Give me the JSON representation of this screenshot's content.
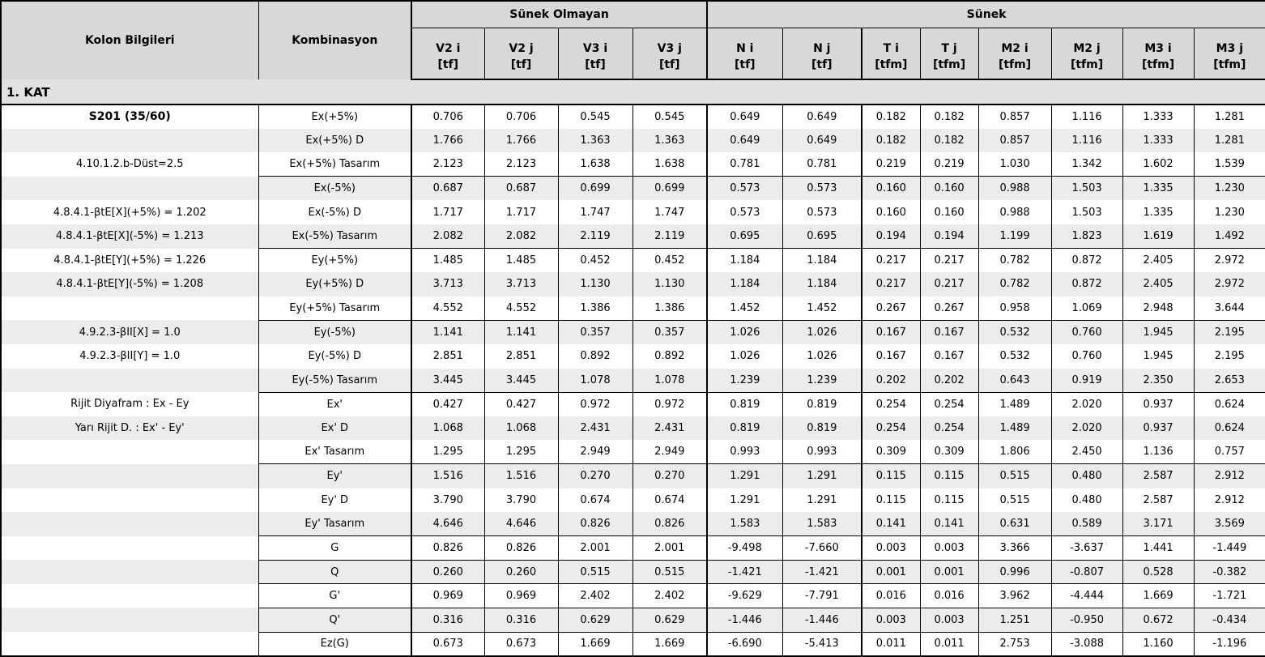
{
  "header": {
    "kolon_bilgileri": "Kolon Bilgileri",
    "kombinasyon": "Kombinasyon",
    "group_nonductile": "Sünek Olmayan",
    "group_ductile": "Sünek",
    "columns": [
      {
        "name": "V2 i",
        "unit": "[tf]"
      },
      {
        "name": "V2 j",
        "unit": "[tf]"
      },
      {
        "name": "V3 i",
        "unit": "[tf]"
      },
      {
        "name": "V3 j",
        "unit": "[tf]"
      },
      {
        "name": "N i",
        "unit": "[tf]"
      },
      {
        "name": "N j",
        "unit": "[tf]"
      },
      {
        "name": "T i",
        "unit": "[tfm]"
      },
      {
        "name": "T j",
        "unit": "[tfm]"
      },
      {
        "name": "M2 i",
        "unit": "[tfm]"
      },
      {
        "name": "M2 j",
        "unit": "[tfm]"
      },
      {
        "name": "M3 i",
        "unit": "[tfm]"
      },
      {
        "name": "M3 j",
        "unit": "[tfm]"
      }
    ]
  },
  "section": "1. KAT",
  "colors": {
    "header_bg": "#d8d8d8",
    "section_bg": "#e2e2e2",
    "row_alt_bg": "#ececec",
    "border": "#000000"
  },
  "rows": [
    {
      "info": "S201 (35/60)",
      "bold": true,
      "combo": "Ex(+5%)",
      "group_start": false,
      "values": [
        "0.706",
        "0.706",
        "0.545",
        "0.545",
        "0.649",
        "0.649",
        "0.182",
        "0.182",
        "0.857",
        "1.116",
        "1.333",
        "1.281"
      ]
    },
    {
      "info": "",
      "bold": false,
      "combo": "Ex(+5%) D",
      "group_start": false,
      "values": [
        "1.766",
        "1.766",
        "1.363",
        "1.363",
        "0.649",
        "0.649",
        "0.182",
        "0.182",
        "0.857",
        "1.116",
        "1.333",
        "1.281"
      ]
    },
    {
      "info": "4.10.1.2.b-Düst=2.5",
      "bold": false,
      "combo": "Ex(+5%) Tasarım",
      "group_start": false,
      "values": [
        "2.123",
        "2.123",
        "1.638",
        "1.638",
        "0.781",
        "0.781",
        "0.219",
        "0.219",
        "1.030",
        "1.342",
        "1.602",
        "1.539"
      ]
    },
    {
      "info": "",
      "bold": false,
      "combo": "Ex(-5%)",
      "group_start": true,
      "values": [
        "0.687",
        "0.687",
        "0.699",
        "0.699",
        "0.573",
        "0.573",
        "0.160",
        "0.160",
        "0.988",
        "1.503",
        "1.335",
        "1.230"
      ]
    },
    {
      "info": "4.8.4.1-βtE[X](+5%) = 1.202",
      "bold": false,
      "combo": "Ex(-5%) D",
      "group_start": false,
      "values": [
        "1.717",
        "1.717",
        "1.747",
        "1.747",
        "0.573",
        "0.573",
        "0.160",
        "0.160",
        "0.988",
        "1.503",
        "1.335",
        "1.230"
      ]
    },
    {
      "info": "4.8.4.1-βtE[X](-5%) = 1.213",
      "bold": false,
      "combo": "Ex(-5%) Tasarım",
      "group_start": false,
      "values": [
        "2.082",
        "2.082",
        "2.119",
        "2.119",
        "0.695",
        "0.695",
        "0.194",
        "0.194",
        "1.199",
        "1.823",
        "1.619",
        "1.492"
      ]
    },
    {
      "info": "4.8.4.1-βtE[Y](+5%) = 1.226",
      "bold": false,
      "combo": "Ey(+5%)",
      "group_start": true,
      "values": [
        "1.485",
        "1.485",
        "0.452",
        "0.452",
        "1.184",
        "1.184",
        "0.217",
        "0.217",
        "0.782",
        "0.872",
        "2.405",
        "2.972"
      ]
    },
    {
      "info": "4.8.4.1-βtE[Y](-5%) = 1.208",
      "bold": false,
      "combo": "Ey(+5%) D",
      "group_start": false,
      "values": [
        "3.713",
        "3.713",
        "1.130",
        "1.130",
        "1.184",
        "1.184",
        "0.217",
        "0.217",
        "0.782",
        "0.872",
        "2.405",
        "2.972"
      ]
    },
    {
      "info": "",
      "bold": false,
      "combo": "Ey(+5%) Tasarım",
      "group_start": false,
      "values": [
        "4.552",
        "4.552",
        "1.386",
        "1.386",
        "1.452",
        "1.452",
        "0.267",
        "0.267",
        "0.958",
        "1.069",
        "2.948",
        "3.644"
      ]
    },
    {
      "info": "4.9.2.3-βII[X] = 1.0",
      "bold": false,
      "combo": "Ey(-5%)",
      "group_start": true,
      "values": [
        "1.141",
        "1.141",
        "0.357",
        "0.357",
        "1.026",
        "1.026",
        "0.167",
        "0.167",
        "0.532",
        "0.760",
        "1.945",
        "2.195"
      ]
    },
    {
      "info": "4.9.2.3-βII[Y] = 1.0",
      "bold": false,
      "combo": "Ey(-5%) D",
      "group_start": false,
      "values": [
        "2.851",
        "2.851",
        "0.892",
        "0.892",
        "1.026",
        "1.026",
        "0.167",
        "0.167",
        "0.532",
        "0.760",
        "1.945",
        "2.195"
      ]
    },
    {
      "info": "",
      "bold": false,
      "combo": "Ey(-5%) Tasarım",
      "group_start": false,
      "values": [
        "3.445",
        "3.445",
        "1.078",
        "1.078",
        "1.239",
        "1.239",
        "0.202",
        "0.202",
        "0.643",
        "0.919",
        "2.350",
        "2.653"
      ]
    },
    {
      "info": "Rijit Diyafram : Ex - Ey",
      "bold": false,
      "combo": "Ex'",
      "group_start": true,
      "values": [
        "0.427",
        "0.427",
        "0.972",
        "0.972",
        "0.819",
        "0.819",
        "0.254",
        "0.254",
        "1.489",
        "2.020",
        "0.937",
        "0.624"
      ]
    },
    {
      "info": "Yarı Rijit D. : Ex' - Ey'",
      "bold": false,
      "combo": "Ex' D",
      "group_start": false,
      "values": [
        "1.068",
        "1.068",
        "2.431",
        "2.431",
        "0.819",
        "0.819",
        "0.254",
        "0.254",
        "1.489",
        "2.020",
        "0.937",
        "0.624"
      ]
    },
    {
      "info": "",
      "bold": false,
      "combo": "Ex' Tasarım",
      "group_start": false,
      "values": [
        "1.295",
        "1.295",
        "2.949",
        "2.949",
        "0.993",
        "0.993",
        "0.309",
        "0.309",
        "1.806",
        "2.450",
        "1.136",
        "0.757"
      ]
    },
    {
      "info": "",
      "bold": false,
      "combo": "Ey'",
      "group_start": true,
      "values": [
        "1.516",
        "1.516",
        "0.270",
        "0.270",
        "1.291",
        "1.291",
        "0.115",
        "0.115",
        "0.515",
        "0.480",
        "2.587",
        "2.912"
      ]
    },
    {
      "info": "",
      "bold": false,
      "combo": "Ey' D",
      "group_start": false,
      "values": [
        "3.790",
        "3.790",
        "0.674",
        "0.674",
        "1.291",
        "1.291",
        "0.115",
        "0.115",
        "0.515",
        "0.480",
        "2.587",
        "2.912"
      ]
    },
    {
      "info": "",
      "bold": false,
      "combo": "Ey' Tasarım",
      "group_start": false,
      "values": [
        "4.646",
        "4.646",
        "0.826",
        "0.826",
        "1.583",
        "1.583",
        "0.141",
        "0.141",
        "0.631",
        "0.589",
        "3.171",
        "3.569"
      ]
    },
    {
      "info": "",
      "bold": false,
      "combo": "G",
      "group_start": true,
      "values": [
        "0.826",
        "0.826",
        "2.001",
        "2.001",
        "-9.498",
        "-7.660",
        "0.003",
        "0.003",
        "3.366",
        "-3.637",
        "1.441",
        "-1.449"
      ]
    },
    {
      "info": "",
      "bold": false,
      "combo": "Q",
      "group_start": true,
      "values": [
        "0.260",
        "0.260",
        "0.515",
        "0.515",
        "-1.421",
        "-1.421",
        "0.001",
        "0.001",
        "0.996",
        "-0.807",
        "0.528",
        "-0.382"
      ]
    },
    {
      "info": "",
      "bold": false,
      "combo": "G'",
      "group_start": true,
      "values": [
        "0.969",
        "0.969",
        "2.402",
        "2.402",
        "-9.629",
        "-7.791",
        "0.016",
        "0.016",
        "3.962",
        "-4.444",
        "1.669",
        "-1.721"
      ]
    },
    {
      "info": "",
      "bold": false,
      "combo": "Q'",
      "group_start": true,
      "values": [
        "0.316",
        "0.316",
        "0.629",
        "0.629",
        "-1.446",
        "-1.446",
        "0.003",
        "0.003",
        "1.251",
        "-0.950",
        "0.672",
        "-0.434"
      ]
    },
    {
      "info": "",
      "bold": false,
      "combo": "Ez(G)",
      "group_start": true,
      "values": [
        "0.673",
        "0.673",
        "1.669",
        "1.669",
        "-6.690",
        "-5.413",
        "0.011",
        "0.011",
        "2.753",
        "-3.088",
        "1.160",
        "-1.196"
      ]
    }
  ]
}
